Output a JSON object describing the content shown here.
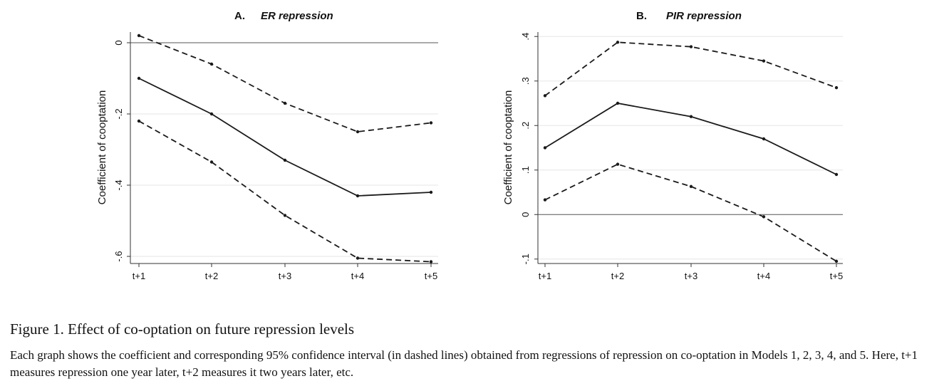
{
  "chart_data": [
    {
      "type": "line",
      "panel_letter": "A.",
      "title": "ER repression",
      "ylabel": "Coefficient of cooptation",
      "categories": [
        "t+1",
        "t+2",
        "t+3",
        "t+4",
        "t+5"
      ],
      "ylim": [
        -0.62,
        0.03
      ],
      "yticks": [
        0,
        -0.2,
        -0.4,
        -0.6
      ],
      "ytick_labels": [
        "0",
        "-.2",
        "-.4",
        "-.6"
      ],
      "reference_line": 0,
      "grid": true,
      "series": [
        {
          "style": "solid",
          "values": [
            -0.1,
            -0.2,
            -0.33,
            -0.43,
            -0.42
          ]
        },
        {
          "style": "dashed",
          "values": [
            0.02,
            -0.06,
            -0.17,
            -0.25,
            -0.225
          ]
        },
        {
          "style": "dashed",
          "values": [
            -0.22,
            -0.335,
            -0.485,
            -0.605,
            -0.615
          ]
        }
      ]
    },
    {
      "type": "line",
      "panel_letter": "B.",
      "title": "PIR repression",
      "ylabel": "Coefficient of cooptation",
      "categories": [
        "t+1",
        "t+2",
        "t+3",
        "t+4",
        "t+5"
      ],
      "ylim": [
        -0.11,
        0.41
      ],
      "yticks": [
        0.4,
        0.3,
        0.2,
        0.1,
        0,
        -0.1
      ],
      "ytick_labels": [
        ".4",
        ".3",
        ".2",
        ".1",
        "0",
        "-.1"
      ],
      "reference_line": 0,
      "grid": true,
      "series": [
        {
          "style": "solid",
          "values": [
            0.15,
            0.25,
            0.22,
            0.17,
            0.09
          ]
        },
        {
          "style": "dashed",
          "values": [
            0.267,
            0.387,
            0.377,
            0.345,
            0.285
          ]
        },
        {
          "style": "dashed",
          "values": [
            0.033,
            0.113,
            0.063,
            -0.005,
            -0.105
          ]
        }
      ]
    }
  ],
  "caption": {
    "title": "Figure 1. Effect of co-optation on future repression levels",
    "text": "Each graph shows the coefficient and corresponding 95% confidence interval (in dashed lines) obtained from regressions of repression on co-optation in Models 1, 2, 3, 4, and 5. Here, t+1 measures repression one year later, t+2 measures it two years later, etc."
  }
}
